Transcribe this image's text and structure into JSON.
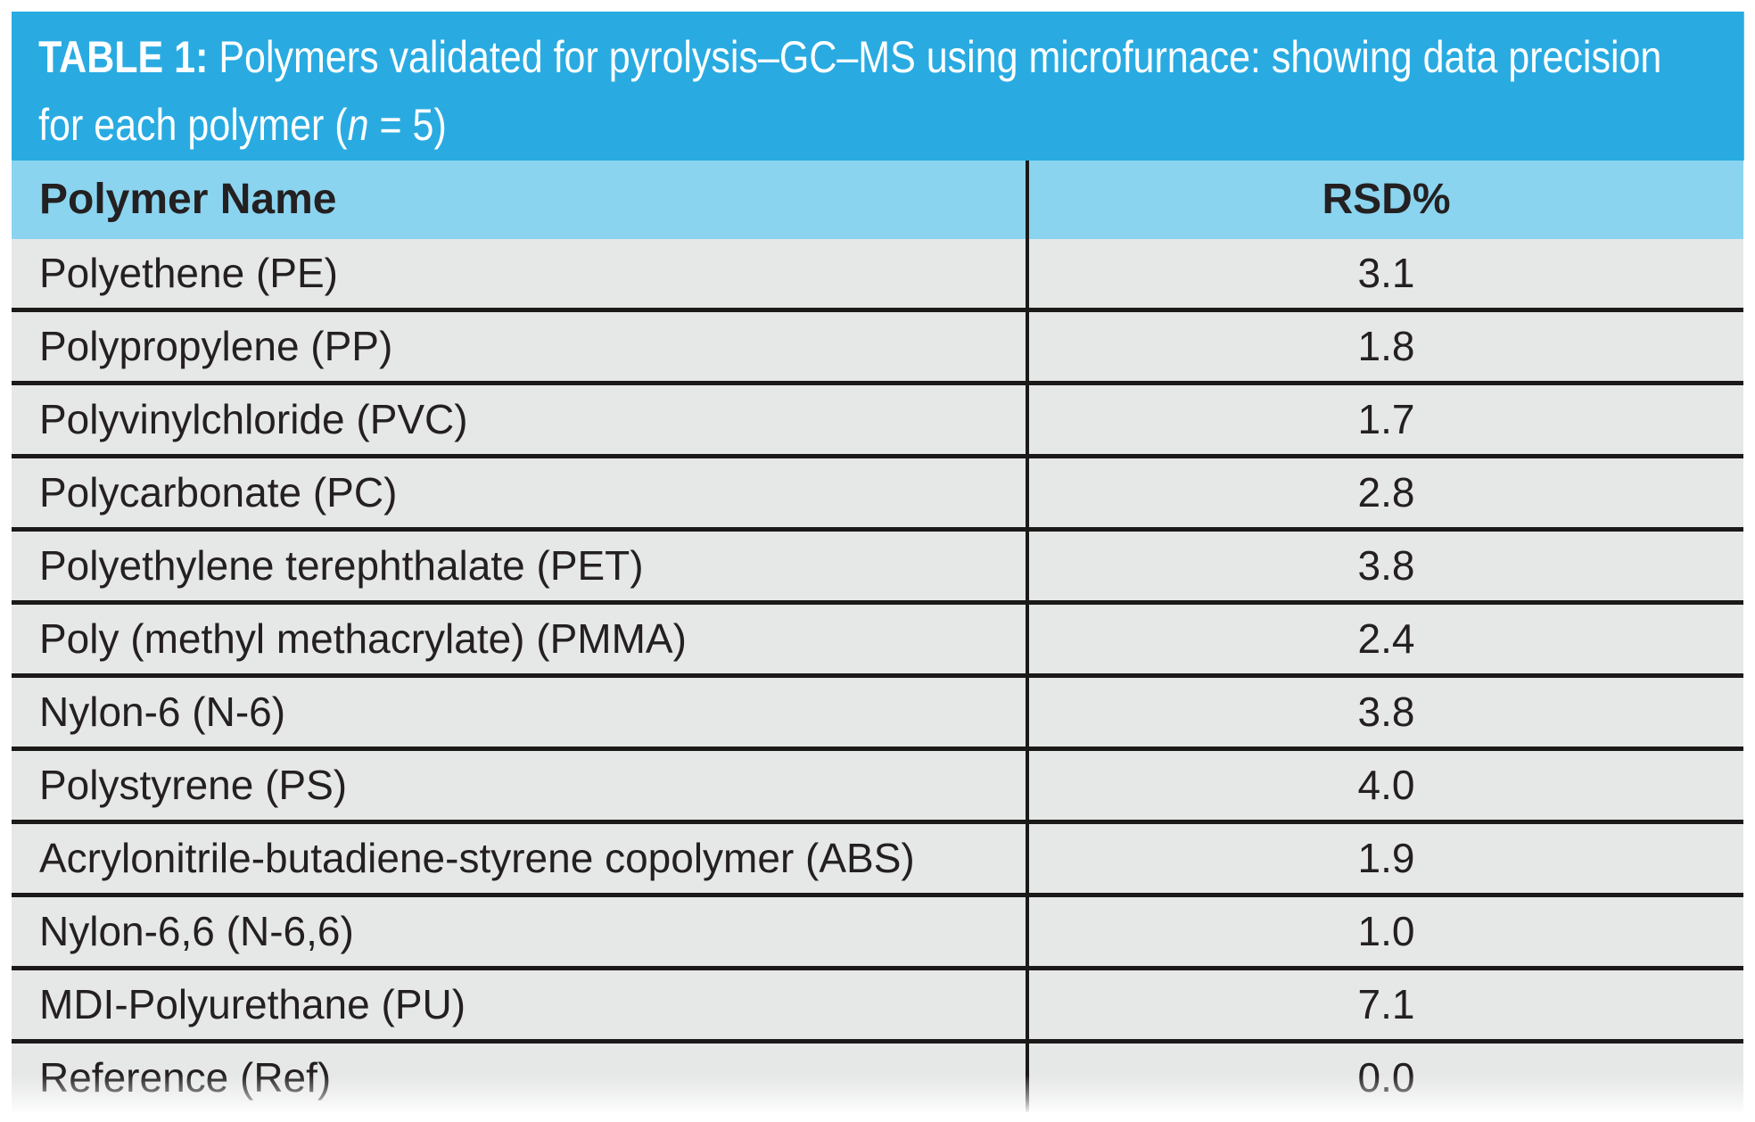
{
  "caption": {
    "label": "TABLE 1:",
    "line1_rest": " Polymers validated for pyrolysis–GC–MS using microfurnace: showing data precision",
    "line2_prefix": "for each polymer (",
    "n_symbol": "n",
    "line2_suffix": " = 5)"
  },
  "table": {
    "columns": [
      "Polymer Name",
      "RSD%"
    ],
    "rows": [
      {
        "name": "Polyethene (PE)",
        "rsd": "3.1"
      },
      {
        "name": "Polypropylene (PP)",
        "rsd": "1.8"
      },
      {
        "name": "Polyvinylchloride (PVC)",
        "rsd": "1.7"
      },
      {
        "name": "Polycarbonate (PC)",
        "rsd": "2.8"
      },
      {
        "name": "Polyethylene terephthalate (PET)",
        "rsd": "3.8"
      },
      {
        "name": "Poly (methyl methacrylate) (PMMA)",
        "rsd": "2.4"
      },
      {
        "name": "Nylon-6 (N-6)",
        "rsd": "3.8"
      },
      {
        "name": "Polystyrene (PS)",
        "rsd": "4.0"
      },
      {
        "name": "Acrylonitrile-butadiene-styrene copolymer (ABS)",
        "rsd": "1.9"
      },
      {
        "name": "Nylon-6,6 (N-6,6)",
        "rsd": "1.0"
      },
      {
        "name": "MDI-Polyurethane (PU)",
        "rsd": "7.1"
      },
      {
        "name": "Reference (Ref)",
        "rsd": "0.0"
      }
    ]
  },
  "colors": {
    "caption_bg": "#29ABE2",
    "caption_text": "#FFFFFF",
    "column_header_bg": "#8AD4EF",
    "row_bg": "#E6E7E7",
    "rule": "#1C1919",
    "body_text": "#242021"
  },
  "chart_data": {
    "type": "table",
    "title": "TABLE 1: Polymers validated for pyrolysis–GC–MS using microfurnace: showing data precision for each polymer (n = 5)",
    "categories": [
      "Polyethene (PE)",
      "Polypropylene (PP)",
      "Polyvinylchloride (PVC)",
      "Polycarbonate (PC)",
      "Polyethylene terephthalate (PET)",
      "Poly (methyl methacrylate) (PMMA)",
      "Nylon-6 (N-6)",
      "Polystyrene (PS)",
      "Acrylonitrile-butadiene-styrene copolymer (ABS)",
      "Nylon-6,6 (N-6,6)",
      "MDI-Polyurethane (PU)",
      "Reference (Ref)"
    ],
    "series": [
      {
        "name": "RSD%",
        "values": [
          3.1,
          1.8,
          1.7,
          2.8,
          3.8,
          2.4,
          3.8,
          4.0,
          1.9,
          1.0,
          7.1,
          0.0
        ]
      }
    ]
  }
}
